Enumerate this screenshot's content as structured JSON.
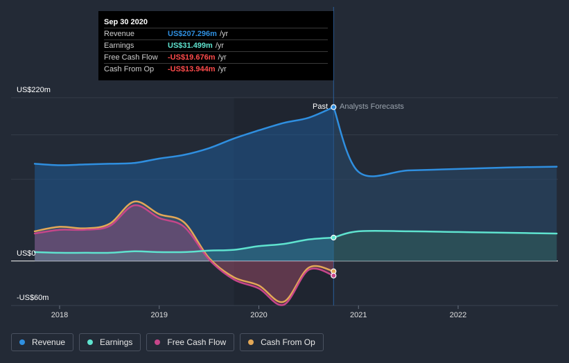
{
  "chart_data": {
    "type": "line",
    "y_axis": {
      "max_label": "US$220m",
      "zero_label": "US$0",
      "min_label": "-US$60m",
      "ylim": [
        -60,
        220
      ]
    },
    "x_ticks": [
      "2018",
      "2019",
      "2020",
      "2021",
      "2022"
    ],
    "annotations": {
      "past": "Past",
      "forecast": "Analysts Forecasts"
    },
    "past_end": 2020.75,
    "series": [
      {
        "name": "Revenue",
        "color": "#2f8fe0",
        "past": [
          [
            2017.75,
            131
          ],
          [
            2018.0,
            129
          ],
          [
            2018.25,
            130
          ],
          [
            2018.5,
            131
          ],
          [
            2018.75,
            132
          ],
          [
            2019.0,
            138
          ],
          [
            2019.25,
            143
          ],
          [
            2019.5,
            152
          ],
          [
            2019.75,
            165
          ],
          [
            2020.0,
            176
          ],
          [
            2020.25,
            186
          ],
          [
            2020.5,
            193
          ],
          [
            2020.75,
            207.3
          ]
        ],
        "forecast": [
          [
            2020.75,
            207.3
          ],
          [
            2021.0,
            120
          ],
          [
            2021.5,
            122
          ],
          [
            2022.0,
            124
          ],
          [
            2022.5,
            126
          ],
          [
            2022.99,
            127
          ]
        ]
      },
      {
        "name": "Earnings",
        "color": "#5fe3cf",
        "past": [
          [
            2017.75,
            12
          ],
          [
            2018.0,
            11
          ],
          [
            2018.25,
            11
          ],
          [
            2018.5,
            11
          ],
          [
            2018.75,
            13
          ],
          [
            2019.0,
            12
          ],
          [
            2019.25,
            12
          ],
          [
            2019.5,
            14
          ],
          [
            2019.75,
            15
          ],
          [
            2020.0,
            20
          ],
          [
            2020.25,
            23
          ],
          [
            2020.5,
            29
          ],
          [
            2020.75,
            31.5
          ]
        ],
        "forecast": [
          [
            2020.75,
            31.5
          ],
          [
            2021.0,
            40
          ],
          [
            2021.5,
            40
          ],
          [
            2022.0,
            39
          ],
          [
            2022.5,
            38
          ],
          [
            2022.99,
            37
          ]
        ]
      },
      {
        "name": "Free Cash Flow",
        "color": "#c6468a",
        "past": [
          [
            2017.75,
            37
          ],
          [
            2018.0,
            42
          ],
          [
            2018.25,
            42
          ],
          [
            2018.5,
            47
          ],
          [
            2018.75,
            75
          ],
          [
            2019.0,
            58
          ],
          [
            2019.25,
            46
          ],
          [
            2019.5,
            2
          ],
          [
            2019.75,
            -25
          ],
          [
            2020.0,
            -37
          ],
          [
            2020.25,
            -59
          ],
          [
            2020.5,
            -12
          ],
          [
            2020.75,
            -19.7
          ]
        ],
        "forecast": []
      },
      {
        "name": "Cash From Op",
        "color": "#e3a857",
        "past": [
          [
            2017.75,
            40
          ],
          [
            2018.0,
            46
          ],
          [
            2018.25,
            44
          ],
          [
            2018.5,
            50
          ],
          [
            2018.75,
            80
          ],
          [
            2019.0,
            63
          ],
          [
            2019.25,
            52
          ],
          [
            2019.5,
            4
          ],
          [
            2019.75,
            -22
          ],
          [
            2020.0,
            -33
          ],
          [
            2020.25,
            -55
          ],
          [
            2020.5,
            -9
          ],
          [
            2020.75,
            -13.9
          ]
        ],
        "forecast": []
      }
    ]
  },
  "tooltip": {
    "date": "Sep 30 2020",
    "rows": [
      {
        "label": "Revenue",
        "value": "US$207.296m",
        "unit": "/yr",
        "color": "#2f8fe0"
      },
      {
        "label": "Earnings",
        "value": "US$31.499m",
        "unit": "/yr",
        "color": "#5fe3cf"
      },
      {
        "label": "Free Cash Flow",
        "value": "-US$19.676m",
        "unit": "/yr",
        "color": "#ff4b4b"
      },
      {
        "label": "Cash From Op",
        "value": "-US$13.944m",
        "unit": "/yr",
        "color": "#ff4b4b"
      }
    ]
  },
  "legend": [
    {
      "label": "Revenue",
      "color": "#2f8fe0"
    },
    {
      "label": "Earnings",
      "color": "#5fe3cf"
    },
    {
      "label": "Free Cash Flow",
      "color": "#c6468a"
    },
    {
      "label": "Cash From Op",
      "color": "#e3a857"
    }
  ]
}
